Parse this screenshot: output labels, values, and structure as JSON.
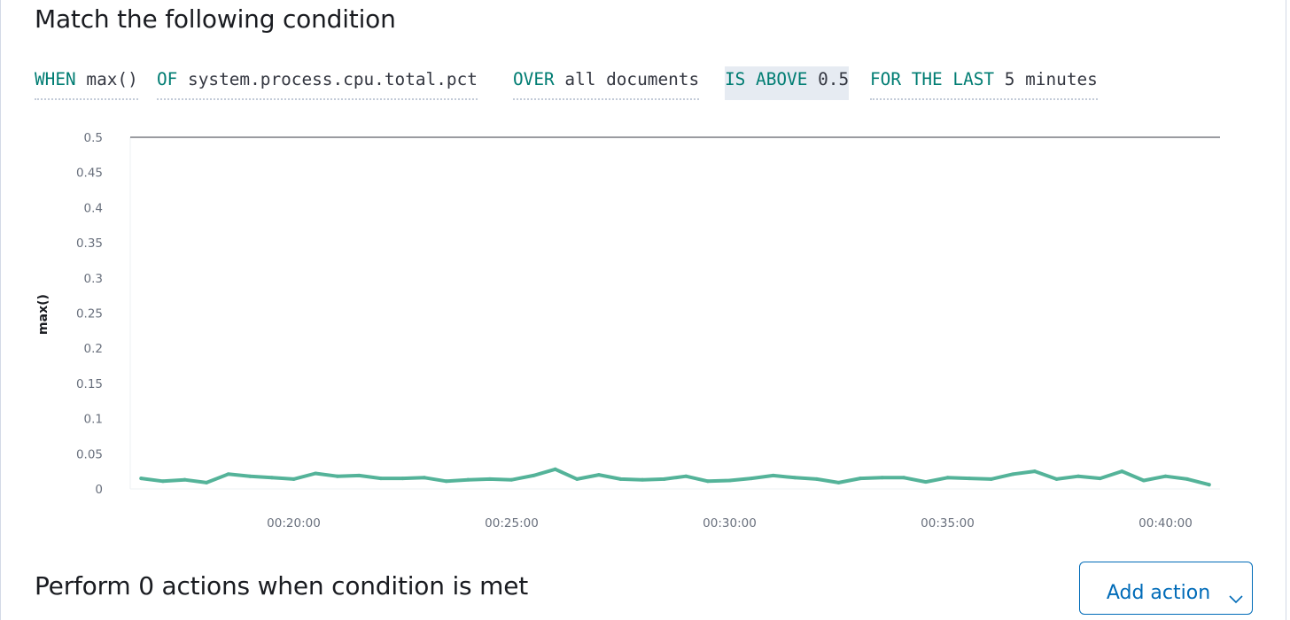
{
  "condition": {
    "title": "Match the following condition",
    "expression": [
      {
        "keyword": "WHEN",
        "value": "max()",
        "active": false
      },
      {
        "keyword": "OF",
        "value": "system.process.cpu.total.pct",
        "active": false
      },
      {
        "keyword": "OVER",
        "value": "all documents",
        "active": false
      },
      {
        "keyword": "IS ABOVE",
        "value": "0.5",
        "active": true
      },
      {
        "keyword": "FOR THE LAST",
        "value": "5 minutes",
        "active": false
      }
    ]
  },
  "chart_data": {
    "type": "line",
    "ylabel": "max()",
    "xlabel": "",
    "ylim": [
      0,
      0.5
    ],
    "y_ticks": [
      "0",
      "0.05",
      "0.1",
      "0.15",
      "0.2",
      "0.25",
      "0.3",
      "0.35",
      "0.4",
      "0.45",
      "0.5"
    ],
    "x_ticks": [
      "00:20:00",
      "00:25:00",
      "00:30:00",
      "00:35:00",
      "00:40:00"
    ],
    "x_tick_minutes": [
      20,
      25,
      30,
      35,
      40
    ],
    "x_range_minutes": [
      16.25,
      41.25
    ],
    "threshold": 0.5,
    "series": [
      {
        "color": "#54b399",
        "x_minutes": [
          16.5,
          17,
          17.5,
          18,
          18.5,
          19,
          19.5,
          20,
          20.5,
          21,
          21.5,
          22,
          22.5,
          23,
          23.5,
          24,
          24.5,
          25,
          25.5,
          26,
          26.5,
          27,
          27.5,
          28,
          28.5,
          29,
          29.5,
          30,
          30.5,
          31,
          31.5,
          32,
          32.5,
          33,
          33.5,
          34,
          34.5,
          35,
          35.5,
          36,
          36.5,
          37,
          37.5,
          38,
          38.5,
          39,
          39.5,
          40,
          40.5,
          41
        ],
        "values": [
          0.015,
          0.011,
          0.013,
          0.009,
          0.021,
          0.018,
          0.016,
          0.014,
          0.022,
          0.018,
          0.019,
          0.015,
          0.015,
          0.016,
          0.011,
          0.013,
          0.014,
          0.013,
          0.019,
          0.028,
          0.014,
          0.02,
          0.014,
          0.013,
          0.014,
          0.018,
          0.011,
          0.012,
          0.015,
          0.019,
          0.016,
          0.014,
          0.009,
          0.015,
          0.016,
          0.016,
          0.01,
          0.016,
          0.015,
          0.014,
          0.021,
          0.025,
          0.014,
          0.018,
          0.015,
          0.025,
          0.012,
          0.018,
          0.014,
          0.006
        ]
      }
    ]
  },
  "actions": {
    "title": "Perform 0 actions when condition is met",
    "add_action_label": "Add action",
    "add_action_icon": "chevron-down-icon",
    "accent_color": "#006bb8"
  }
}
